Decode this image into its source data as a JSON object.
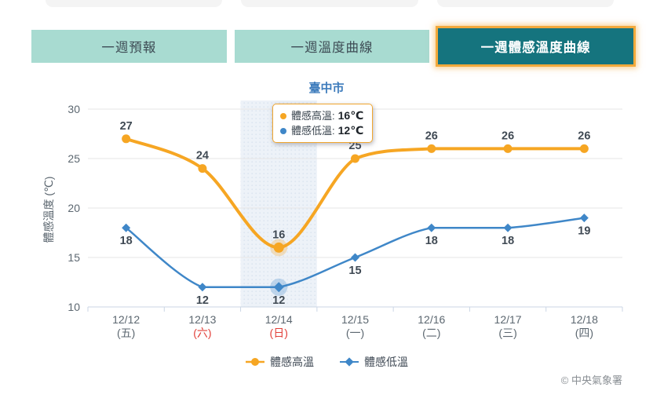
{
  "tabs": [
    {
      "label": "一週預報",
      "active": false
    },
    {
      "label": "一週溫度曲線",
      "active": false
    },
    {
      "label": "一週體感溫度曲線",
      "active": true
    }
  ],
  "chart_data": {
    "type": "line",
    "title": "臺中市",
    "ylabel": "體感溫度 (℃)",
    "ylim": [
      10,
      30
    ],
    "yticks": [
      10,
      15,
      20,
      25,
      30
    ],
    "grid": true,
    "legend_position": "bottom",
    "categories": [
      "12/12",
      "12/13",
      "12/14",
      "12/15",
      "12/16",
      "12/17",
      "12/18"
    ],
    "weekdays": [
      "(五)",
      "(六)",
      "(日)",
      "(一)",
      "(二)",
      "(三)",
      "(四)"
    ],
    "weekend_indices": [
      1,
      2
    ],
    "highlighted_index": 2,
    "series": [
      {
        "name": "體感高溫",
        "color": "#F6A623",
        "marker": "circle",
        "values": [
          27,
          24,
          16,
          25,
          26,
          26,
          26
        ]
      },
      {
        "name": "體感低溫",
        "color": "#3F87C8",
        "marker": "diamond",
        "values": [
          18,
          12,
          12,
          15,
          18,
          18,
          19
        ]
      }
    ],
    "colors": {
      "grid": "#e6e6e6",
      "axis": "#cbd6e5",
      "tick_text": "#5c6770",
      "weekend_red": "#e2403a",
      "data_label": "#404a54",
      "band_bg": "#edf2f8",
      "band_dot": "#dce5f0",
      "title_blue": "#3e7cbc",
      "active_tab_bg": "#15747e",
      "tab_bg": "#a8dbd1",
      "active_tab_border": "#f2a93b"
    }
  },
  "tooltip": {
    "rows": [
      {
        "label": "體感高溫:",
        "value": "16℃",
        "color": "#F6A623"
      },
      {
        "label": "體感低溫:",
        "value": "12℃",
        "color": "#3F87C8"
      }
    ]
  },
  "footer": {
    "copyright": "© 中央氣象署"
  }
}
